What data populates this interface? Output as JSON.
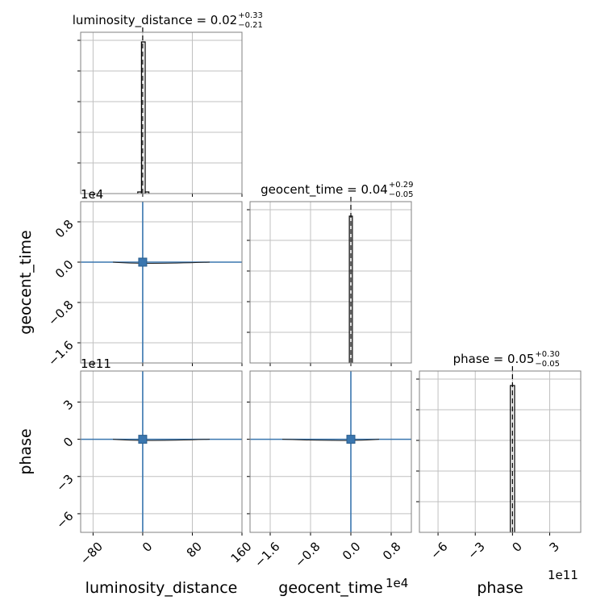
{
  "chart_data": {
    "type": "corner",
    "parameters": [
      "luminosity_distance",
      "geocent_time",
      "phase"
    ],
    "colors": {
      "contour": "#3a76af",
      "hist": "#000000",
      "grid": "#c0c0c0",
      "frame": "#808080"
    },
    "grid": true,
    "summaries": [
      {
        "param": "luminosity_distance",
        "title_main": "luminosity_distance = 0.02",
        "upper": "+0.33",
        "lower": "−0.21"
      },
      {
        "param": "geocent_time",
        "title_main": "geocent_time = 0.04",
        "upper": "+0.29",
        "lower": "−0.05"
      },
      {
        "param": "phase",
        "title_main": "phase = 0.05",
        "upper": "+0.30",
        "lower": "−0.05"
      }
    ],
    "axes": {
      "luminosity_distance": {
        "range": [
          -100,
          160
        ],
        "ticks": [
          -80,
          0,
          80,
          160
        ],
        "tick_labels": [
          "−80",
          "0",
          "80",
          "160"
        ],
        "offset": ""
      },
      "geocent_time": {
        "range": [
          -2.0,
          1.2
        ],
        "ticks": [
          -1.6,
          -0.8,
          0.0,
          0.8
        ],
        "tick_labels": [
          "−1.6",
          "−0.8",
          "0.0",
          "0.8"
        ],
        "offset": "1e4"
      },
      "phase": {
        "range": [
          -7.5,
          5.5
        ],
        "ticks": [
          -6,
          -3,
          0,
          3
        ],
        "tick_labels": [
          "−6",
          "−3",
          "0",
          "3"
        ],
        "offset": "1e11"
      }
    },
    "hist_axes": {
      "luminosity_distance": {
        "ylim": [
          0,
          1.0
        ],
        "ticks": [
          0.19,
          0.38,
          0.57,
          0.76,
          0.95
        ]
      },
      "geocent_time": {
        "ylim": [
          0,
          1.0
        ],
        "ticks": [
          0.19,
          0.38,
          0.57,
          0.76,
          0.95
        ]
      },
      "phase": {
        "ylim": [
          0,
          1.0
        ],
        "ticks": [
          0.19,
          0.38,
          0.57,
          0.76,
          0.95
        ]
      }
    },
    "histograms": [
      {
        "param": "luminosity_distance",
        "bins": [
          [
            -8,
            -2,
            0.01
          ],
          [
            -2,
            4,
            0.94
          ],
          [
            4,
            10,
            0.01
          ]
        ],
        "truth": 0
      },
      {
        "param": "geocent_time",
        "bins": [
          [
            -0.03,
            0.03,
            0.91
          ]
        ],
        "truth": 0.0
      },
      {
        "param": "phase",
        "bins": [
          [
            -0.17,
            0.17,
            0.91
          ]
        ],
        "truth": 0
      }
    ],
    "truths": {
      "luminosity_distance": 0,
      "geocent_time": 0.0,
      "phase": 0
    },
    "labels": {
      "x": [
        "luminosity_distance",
        "geocent_time",
        "phase"
      ],
      "y": [
        "geocent_time",
        "phase"
      ]
    }
  }
}
